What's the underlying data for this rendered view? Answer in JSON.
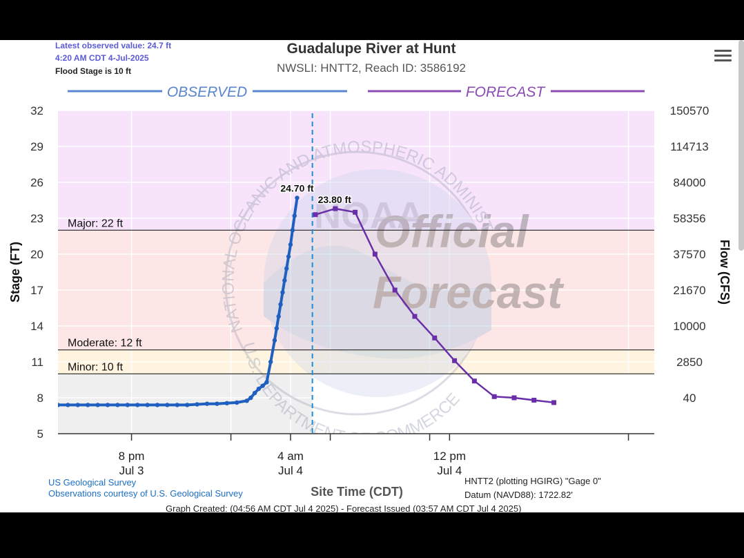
{
  "header": {
    "latest_line1": "Latest observed value: 24.7 ft",
    "latest_line2": "4:20 AM CDT 4-Jul-2025",
    "flood_stage": "Flood Stage is 10 ft",
    "title": "Guadalupe River at Hunt",
    "subtitle": "NWSLI: HNTT2, Reach ID: 3586192"
  },
  "footer": {
    "credit1": "US Geological Survey",
    "credit2": "Observations courtesy of U.S. Geological Survey",
    "datum1": "HNTT2 (plotting HGIRG) \"Gage 0\"",
    "datum2": "Datum (NAVD88): 1722.82'",
    "created": "Graph Created: (04:56 AM CDT Jul 4 2025) - Forecast Issued (03:57 AM CDT Jul 4 2025)"
  },
  "watermark": {
    "ring_text": "NATIONAL OCEANIC AND ATMOSPHERIC ADMINISTRATION",
    "ring_bottom": "U.S. DEPARTMENT OF COMMERCE",
    "logo": "NOAA",
    "stamp1": "Official",
    "stamp2": "Forecast"
  },
  "colors": {
    "observed": "#1f5fbf",
    "forecast": "#6a2ea8",
    "major_band": "#f7e4fb",
    "moderate_band": "#fde6e6",
    "minor_band": "#fff4e0",
    "action_band": "#efefef"
  },
  "chart_data": {
    "type": "line",
    "xlabel": "Site Time (CDT)",
    "ylabel": "Stage (FT)",
    "ylabel_right": "Flow (CFS)",
    "ylim": [
      5,
      32
    ],
    "yticks": [
      5,
      8,
      11,
      14,
      17,
      20,
      23,
      26,
      29,
      32
    ],
    "flow_ticks": [
      "40",
      "2850",
      "10000",
      "21670",
      "37570",
      "58356",
      "84000",
      "114713",
      "150570"
    ],
    "flow_tick_stages": [
      8,
      11,
      14,
      17,
      20,
      23,
      26,
      29,
      32
    ],
    "xlim_hours_from_jul3_8pm": [
      -3.7,
      26.3
    ],
    "xticks": [
      {
        "hour": 0,
        "line1": "8 pm",
        "line2": "Jul 3"
      },
      {
        "hour": 5,
        "line1": "",
        "line2": ""
      },
      {
        "hour": 10,
        "line1": "",
        "line2": ""
      },
      {
        "hour": 8,
        "line1": "4 am",
        "line2": "Jul 4"
      },
      {
        "hour": 15,
        "line1": "",
        "line2": ""
      },
      {
        "hour": 16,
        "line1": "12 pm",
        "line2": "Jul 4"
      },
      {
        "hour": 25,
        "line1": "",
        "line2": ""
      }
    ],
    "now_hour": 9.1,
    "section_labels": {
      "observed": "OBSERVED",
      "forecast": "FORECAST"
    },
    "thresholds": [
      {
        "name": "Major",
        "label": "Major: 22 ft",
        "value": 22
      },
      {
        "name": "Moderate",
        "label": "Moderate: 12 ft",
        "value": 12
      },
      {
        "name": "Minor",
        "label": "Minor: 10 ft",
        "value": 10
      }
    ],
    "series": [
      {
        "name": "Observed",
        "x": [
          -3.7,
          -3.2,
          -2.7,
          -2.2,
          -1.7,
          -1.2,
          -0.7,
          -0.2,
          0.3,
          0.8,
          1.3,
          1.8,
          2.3,
          2.8,
          3.3,
          3.8,
          4.3,
          4.8,
          5.3,
          5.8,
          6.0,
          6.2,
          6.4,
          6.6,
          6.8,
          7.0,
          7.2,
          7.3,
          7.4,
          7.5,
          7.6,
          7.7,
          7.8,
          7.9,
          8.0,
          8.1,
          8.2,
          8.33
        ],
        "y": [
          7.4,
          7.4,
          7.4,
          7.4,
          7.4,
          7.4,
          7.4,
          7.4,
          7.4,
          7.4,
          7.4,
          7.4,
          7.4,
          7.4,
          7.45,
          7.5,
          7.5,
          7.55,
          7.6,
          7.75,
          8.0,
          8.4,
          8.75,
          9.0,
          9.3,
          11.0,
          12.8,
          13.8,
          14.8,
          15.8,
          16.8,
          17.8,
          18.8,
          19.8,
          20.8,
          22.0,
          23.2,
          24.7
        ],
        "peak_label": "24.70 ft",
        "peak_x": 8.33,
        "peak_y": 24.7
      },
      {
        "name": "Forecast",
        "x": [
          9.25,
          10.25,
          11.25,
          12.25,
          13.25,
          14.25,
          15.25,
          16.25,
          17.25,
          18.25,
          19.25,
          20.25,
          21.25
        ],
        "y": [
          23.3,
          23.8,
          23.5,
          20.0,
          17.0,
          14.8,
          13.0,
          11.1,
          9.4,
          8.1,
          8.0,
          7.8,
          7.6
        ],
        "peak_label": "23.80 ft",
        "peak_x": 10.25,
        "peak_y": 23.8
      }
    ]
  }
}
